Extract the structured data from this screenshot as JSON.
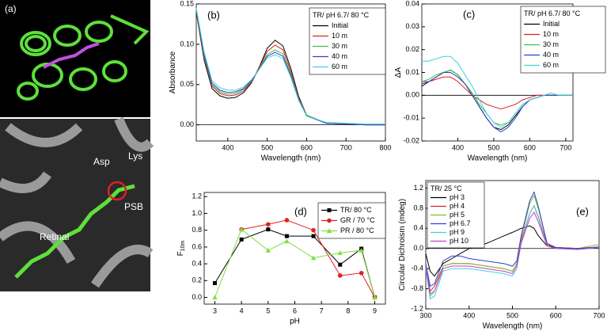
{
  "image_panel": {
    "label": "(a)",
    "annotations": [
      "Asp",
      "Lys",
      "PSB",
      "Retinal"
    ]
  },
  "chart_data": [
    {
      "type": "line",
      "panel_label": "(b)",
      "xlabel": "Wavelength (nm)",
      "ylabel": "Absorbance",
      "legend_title": "TR/ pH 6.7/ 80 °C",
      "xlim": [
        320,
        800
      ],
      "xticks": [
        400,
        500,
        600,
        700,
        800
      ],
      "ylim": [
        -0.02,
        0.15
      ],
      "yticks": [
        {
          "value": 0,
          "label": "0.00"
        },
        {
          "value": 0.05,
          "label": "0.05"
        },
        {
          "value": 0.1,
          "label": "0.10"
        },
        {
          "value": 0.15,
          "label": "0.15"
        }
      ],
      "x": [
        320,
        340,
        360,
        380,
        400,
        420,
        440,
        460,
        480,
        500,
        520,
        540,
        560,
        580,
        600,
        650,
        700,
        750,
        800
      ],
      "series": [
        {
          "name": "Initial",
          "color": "#000000",
          "values": [
            0.14,
            0.08,
            0.045,
            0.036,
            0.033,
            0.034,
            0.04,
            0.052,
            0.072,
            0.095,
            0.105,
            0.098,
            0.07,
            0.035,
            0.012,
            0.002,
            0.001,
            0,
            0
          ]
        },
        {
          "name": "10 m",
          "color": "#e02020",
          "values": [
            0.142,
            0.083,
            0.048,
            0.039,
            0.036,
            0.037,
            0.042,
            0.053,
            0.071,
            0.091,
            0.099,
            0.093,
            0.066,
            0.033,
            0.012,
            0.002,
            0.001,
            0,
            0
          ]
        },
        {
          "name": "30 m",
          "color": "#40c040",
          "values": [
            0.143,
            0.085,
            0.05,
            0.041,
            0.038,
            0.039,
            0.044,
            0.054,
            0.07,
            0.087,
            0.093,
            0.088,
            0.063,
            0.032,
            0.012,
            0.002,
            0.001,
            0,
            0
          ]
        },
        {
          "name": "40 m",
          "color": "#3040d0",
          "values": [
            0.144,
            0.087,
            0.052,
            0.043,
            0.04,
            0.041,
            0.045,
            0.055,
            0.069,
            0.085,
            0.09,
            0.085,
            0.061,
            0.031,
            0.011,
            0.002,
            0.001,
            0,
            0
          ]
        },
        {
          "name": "60 m",
          "color": "#40d0e0",
          "values": [
            0.145,
            0.09,
            0.055,
            0.046,
            0.043,
            0.043,
            0.047,
            0.056,
            0.069,
            0.083,
            0.087,
            0.082,
            0.059,
            0.03,
            0.011,
            0.003,
            0.002,
            0.001,
            0.001
          ]
        }
      ]
    },
    {
      "type": "line",
      "panel_label": "(c)",
      "xlabel": "Wavelength (nm)",
      "ylabel": "ΔA",
      "legend_title": "TR/ pH 6.7/ 80 °C",
      "xlim": [
        300,
        720
      ],
      "xticks": [
        400,
        500,
        600,
        700
      ],
      "ylim": [
        -0.02,
        0.04
      ],
      "yticks": [
        {
          "value": -0.02,
          "label": "-0.02"
        },
        {
          "value": -0.01,
          "label": "-0.01"
        },
        {
          "value": 0,
          "label": "0.00"
        },
        {
          "value": 0.01,
          "label": "0.01"
        },
        {
          "value": 0.02,
          "label": "0.02"
        },
        {
          "value": 0.03,
          "label": "0.03"
        },
        {
          "value": 0.04,
          "label": "0.04"
        }
      ],
      "x": [
        300,
        320,
        340,
        360,
        380,
        400,
        420,
        440,
        460,
        480,
        500,
        520,
        540,
        560,
        580,
        600,
        620,
        640,
        660,
        680,
        700,
        720
      ],
      "series": [
        {
          "name": "Initial",
          "color": "#000000",
          "values": [
            0.004,
            0.006,
            0.008,
            0.01,
            0.011,
            0.009,
            0.005,
            0.0,
            -0.005,
            -0.01,
            -0.014,
            -0.015,
            -0.013,
            -0.009,
            -0.005,
            -0.002,
            -0.001,
            0,
            0,
            0,
            0,
            0
          ]
        },
        {
          "name": "10 m",
          "color": "#e02020",
          "values": [
            0.006,
            0.006,
            0.007,
            0.008,
            0.008,
            0.006,
            0.003,
            0.0,
            -0.002,
            -0.004,
            -0.005,
            -0.006,
            -0.005,
            -0.004,
            -0.002,
            -0.001,
            0,
            0,
            0,
            0,
            0,
            0
          ]
        },
        {
          "name": "30 m",
          "color": "#40c040",
          "values": [
            0.006,
            0.007,
            0.009,
            0.01,
            0.011,
            0.009,
            0.005,
            0.001,
            -0.004,
            -0.008,
            -0.012,
            -0.013,
            -0.012,
            -0.008,
            -0.004,
            -0.002,
            -0.001,
            0,
            0,
            0,
            0,
            0
          ]
        },
        {
          "name": "40 m",
          "color": "#3040d0",
          "values": [
            0.005,
            0.006,
            0.008,
            0.01,
            0.01,
            0.008,
            0.005,
            0.0,
            -0.005,
            -0.01,
            -0.014,
            -0.016,
            -0.014,
            -0.01,
            -0.005,
            -0.002,
            -0.001,
            0,
            0,
            0,
            0,
            0
          ]
        },
        {
          "name": "60 m",
          "color": "#40d0e0",
          "values": [
            0.015,
            0.015,
            0.016,
            0.017,
            0.017,
            0.014,
            0.009,
            0.004,
            -0.002,
            -0.008,
            -0.012,
            -0.014,
            -0.012,
            -0.008,
            -0.004,
            -0.002,
            -0.001,
            0,
            0.001,
            0,
            0,
            0
          ]
        }
      ]
    },
    {
      "type": "line",
      "panel_label": "(d)",
      "xlabel": "pH",
      "ylabel": "F",
      "ylabel_sub": "10m",
      "xlim": [
        2.6,
        9.4
      ],
      "xticks": [
        3,
        4,
        5,
        6,
        7,
        8,
        9
      ],
      "ylim": [
        -0.08,
        1.25
      ],
      "yticks": [
        {
          "value": 0,
          "label": "0.0"
        },
        0.2,
        0.4,
        0.6,
        0.8,
        {
          "value": 1,
          "label": "1.0"
        },
        1.2
      ],
      "x": [
        3,
        4,
        5,
        5.7,
        6.7,
        7.7,
        8.5,
        9
      ],
      "series": [
        {
          "name": "TR/ 80 °C",
          "color": "#000000",
          "marker": "square",
          "values": [
            0.17,
            0.69,
            0.81,
            0.73,
            0.73,
            0.39,
            0.58,
            0
          ]
        },
        {
          "name": "GR / 70 °C",
          "color": "#e02020",
          "marker": "circle",
          "values": [
            null,
            0.81,
            0.87,
            0.92,
            0.8,
            0.26,
            0.29,
            0
          ]
        },
        {
          "name": "PR / 80 °C",
          "color": "#80e040",
          "marker": "triangle",
          "values": [
            0,
            0.81,
            0.56,
            0.67,
            0.47,
            0.53,
            0.56,
            0
          ]
        }
      ]
    },
    {
      "type": "line",
      "panel_label": "(e)",
      "xlabel": "Wavelength (nm)",
      "ylabel": "Circular Dichroism (mdeg)",
      "legend_title": "TR/ 25 °C",
      "xlim": [
        300,
        700
      ],
      "xticks": [
        300,
        400,
        500,
        600,
        700
      ],
      "ylim": [
        -1.2,
        1.35
      ],
      "yticks": [
        -1.2,
        -0.8,
        -0.4,
        {
          "value": 0,
          "label": "0.0"
        },
        0.4,
        0.8,
        1.2
      ],
      "x": [
        300,
        310,
        320,
        340,
        360,
        380,
        400,
        440,
        480,
        500,
        510,
        520,
        540,
        550,
        560,
        580,
        600,
        650,
        700
      ],
      "series": [
        {
          "name": "pH 3",
          "color": "#000000",
          "values": [
            -0.1,
            -0.45,
            -0.55,
            -0.3,
            -0.2,
            -0.1,
            0.0,
            0.1,
            0.25,
            0.32,
            0.36,
            0.4,
            0.45,
            0.4,
            0.25,
            0.05,
            0.02,
            0.0,
            0.02
          ]
        },
        {
          "name": "pH 4",
          "color": "#e02020",
          "values": [
            -0.3,
            -0.85,
            -0.75,
            -0.35,
            -0.3,
            -0.3,
            -0.3,
            -0.35,
            -0.4,
            -0.45,
            -0.3,
            0.15,
            0.7,
            0.85,
            0.62,
            0.08,
            0.02,
            0.0,
            0.03
          ]
        },
        {
          "name": "pH 5",
          "color": "#80c030",
          "values": [
            -0.35,
            -0.95,
            -0.85,
            -0.35,
            -0.3,
            -0.3,
            -0.3,
            -0.35,
            -0.4,
            -0.45,
            -0.3,
            0.2,
            0.9,
            1.05,
            0.78,
            0.1,
            0.02,
            0.0,
            0.08
          ]
        },
        {
          "name": "pH 6.7",
          "color": "#3040d0",
          "values": [
            -0.3,
            -0.75,
            -0.7,
            -0.25,
            -0.15,
            -0.15,
            -0.2,
            -0.25,
            -0.3,
            -0.35,
            -0.25,
            0.25,
            0.95,
            1.12,
            0.82,
            0.1,
            0.02,
            0.0,
            0.03
          ]
        },
        {
          "name": "pH 9",
          "color": "#40d0e0",
          "values": [
            -0.4,
            -1.0,
            -0.95,
            -0.45,
            -0.4,
            -0.4,
            -0.4,
            -0.45,
            -0.5,
            -0.55,
            -0.4,
            0.1,
            0.7,
            0.85,
            0.6,
            0.05,
            0.0,
            -0.02,
            0.02
          ]
        },
        {
          "name": "pH 10",
          "color": "#c040c0",
          "values": [
            -0.35,
            -0.9,
            -0.85,
            -0.4,
            -0.35,
            -0.35,
            -0.35,
            -0.4,
            -0.45,
            -0.5,
            -0.35,
            0.1,
            0.6,
            0.72,
            0.52,
            0.05,
            0.0,
            -0.02,
            0.02
          ]
        }
      ]
    }
  ]
}
